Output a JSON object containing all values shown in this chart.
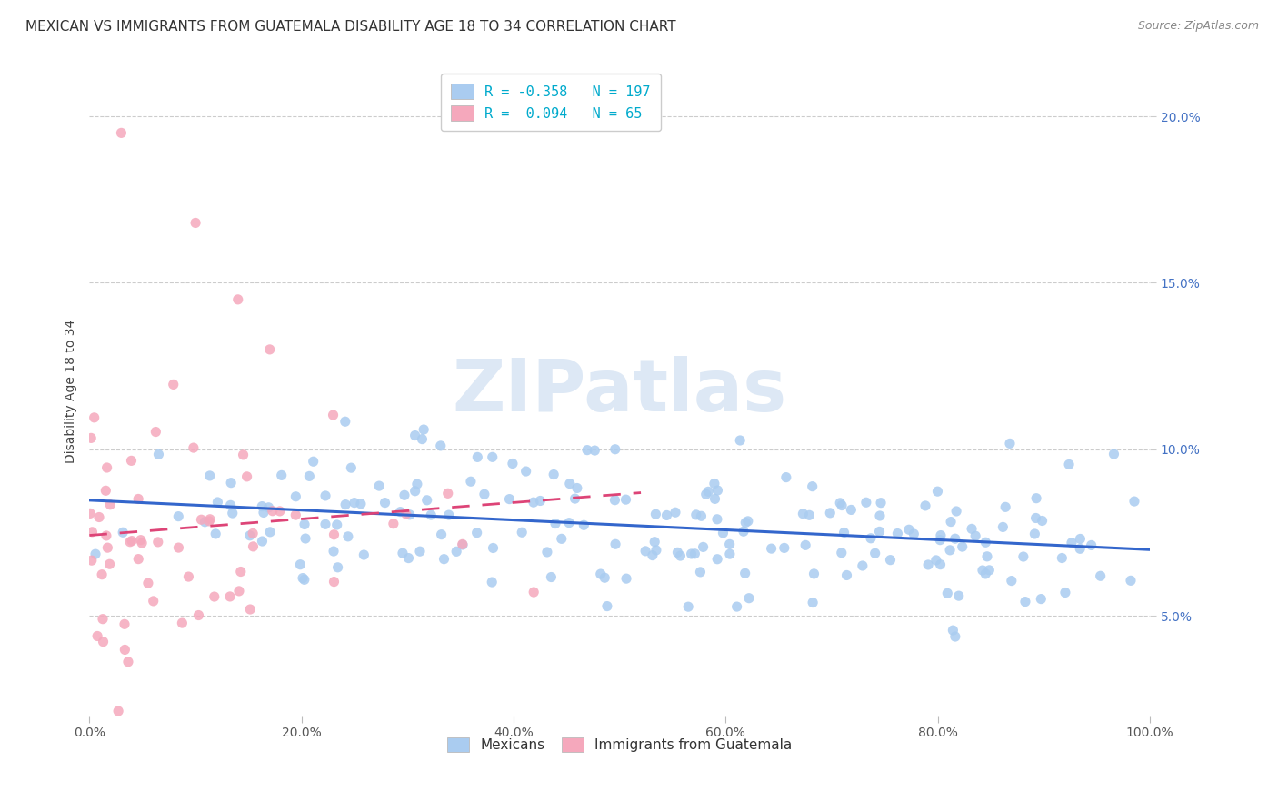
{
  "title": "MEXICAN VS IMMIGRANTS FROM GUATEMALA DISABILITY AGE 18 TO 34 CORRELATION CHART",
  "source": "Source: ZipAtlas.com",
  "ylabel": "Disability Age 18 to 34",
  "xlabel_ticks": [
    "0.0%",
    "20.0%",
    "40.0%",
    "60.0%",
    "80.0%",
    "100.0%"
  ],
  "ylabel_ticks_right": [
    "5.0%",
    "10.0%",
    "15.0%",
    "20.0%"
  ],
  "xlim": [
    0.0,
    1.0
  ],
  "ylim": [
    0.02,
    0.215
  ],
  "ytick_vals": [
    0.05,
    0.1,
    0.15,
    0.2
  ],
  "blue_R": -0.358,
  "blue_N": 197,
  "pink_R": 0.094,
  "pink_N": 65,
  "blue_color": "#aaccf0",
  "pink_color": "#f5a8bc",
  "blue_line_color": "#3366cc",
  "pink_line_color": "#dd4477",
  "watermark_text": "ZIPatlas",
  "watermark_color": "#dde8f5",
  "legend_blue_label": "Mexicans",
  "legend_pink_label": "Immigrants from Guatemala",
  "title_fontsize": 11,
  "source_fontsize": 9,
  "axis_label_fontsize": 10,
  "legend_fontsize": 11,
  "tick_fontsize": 10,
  "background_color": "#ffffff",
  "grid_color": "#cccccc",
  "seed": 12
}
